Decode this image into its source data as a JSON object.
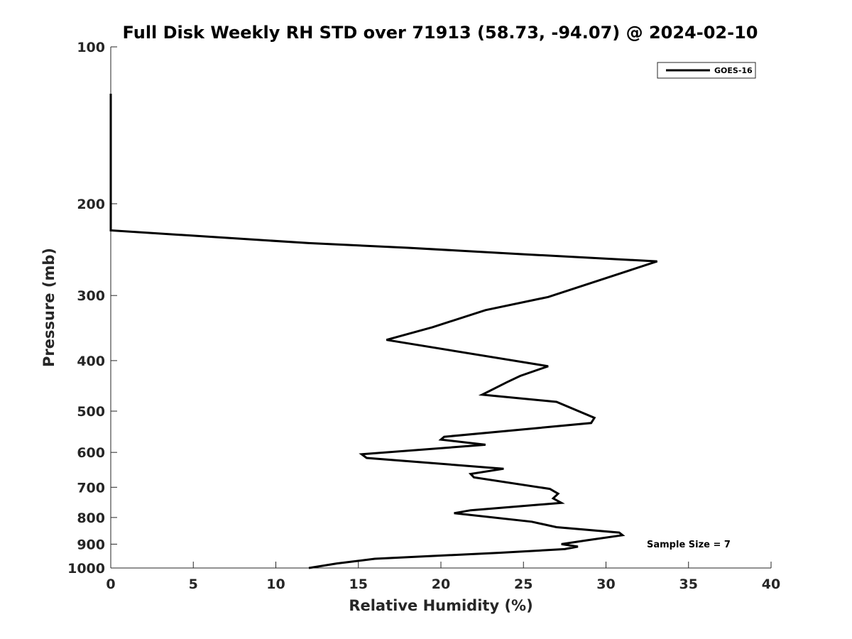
{
  "chart_data": {
    "type": "line",
    "title": "Full Disk Weekly RH STD over 71913 (58.73, -94.07) @ 2024-02-10",
    "xlabel": "Relative Humidity (%)",
    "ylabel": "Pressure (mb)",
    "xlim": [
      0,
      40
    ],
    "ylim": [
      100,
      1000
    ],
    "y_scale": "log",
    "y_inverted": true,
    "x_ticks": [
      "0",
      "5",
      "10",
      "15",
      "20",
      "25",
      "30",
      "35",
      "40"
    ],
    "y_ticks": [
      "100",
      "200",
      "300",
      "400",
      "500",
      "600",
      "700",
      "800",
      "900",
      "1000"
    ],
    "grid": false,
    "legend_position": "top-right",
    "series": [
      {
        "name": "GOES-16",
        "color": "#000000",
        "x": [
          12.0,
          13.7,
          16.0,
          23.5,
          27.5,
          28.3,
          27.3,
          28.8,
          31.0,
          30.8,
          27.0,
          25.5,
          20.8,
          21.8,
          27.3,
          26.8,
          27.1,
          26.6,
          22.0,
          21.8,
          23.8,
          15.5,
          15.2,
          22.7,
          20.0,
          20.2,
          29.1,
          29.3,
          27.0,
          22.5,
          24.0,
          24.8,
          26.5,
          16.7,
          19.5,
          22.7,
          26.5,
          33.1,
          25.0,
          18.0,
          12.0,
          0.0,
          0.0
        ],
        "y": [
          1000,
          980,
          960,
          935,
          920,
          910,
          900,
          885,
          865,
          855,
          835,
          815,
          785,
          775,
          750,
          735,
          720,
          705,
          670,
          660,
          645,
          615,
          605,
          580,
          567,
          560,
          527,
          515,
          480,
          465,
          440,
          428,
          410,
          365,
          345,
          320,
          302,
          258,
          250,
          243,
          238,
          225,
          123
        ]
      }
    ],
    "annotations": [
      "Sample Size = 7"
    ]
  }
}
